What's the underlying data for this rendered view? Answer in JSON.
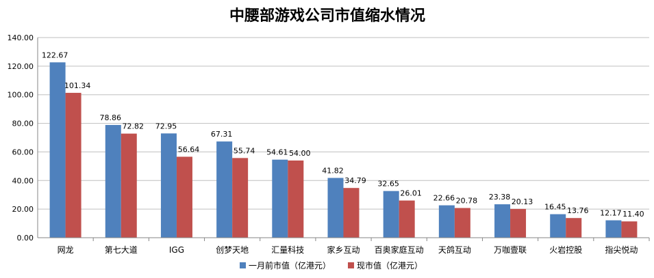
{
  "colors": {
    "series1": "#4f81bd",
    "series2": "#c0504d",
    "grid": "#bfbfbf",
    "axis": "#868686"
  },
  "chart_data": {
    "type": "bar",
    "title": "中腰部游戏公司市值缩水情况",
    "xlabel": "",
    "ylabel": "",
    "ylim": [
      0,
      140
    ],
    "yticks": [
      "0.00",
      "20.00",
      "40.00",
      "60.00",
      "80.00",
      "100.00",
      "120.00",
      "140.00"
    ],
    "grid": true,
    "legend_position": "bottom",
    "categories": [
      "网龙",
      "第七大道",
      "IGG",
      "创梦天地",
      "汇量科技",
      "家乡互动",
      "百奥家庭互动",
      "天鸽互动",
      "万咖壹联",
      "火岩控股",
      "指尖悦动"
    ],
    "series": [
      {
        "name": "一月前市值（亿港元）",
        "values": [
          122.67,
          78.86,
          72.95,
          67.31,
          54.61,
          41.82,
          32.65,
          22.66,
          23.38,
          16.45,
          12.17
        ],
        "labels": [
          "122.67",
          "78.86",
          "72.95",
          "67.31",
          "54.61",
          "41.82",
          "32.65",
          "22.66",
          "23.38",
          "16.45",
          "12.17"
        ]
      },
      {
        "name": "现市值（亿港元）",
        "values": [
          101.34,
          72.82,
          56.64,
          55.74,
          54.0,
          34.79,
          26.01,
          20.78,
          20.13,
          13.76,
          11.4
        ],
        "labels": [
          "101.34",
          "72.82",
          "56.64",
          "55.74",
          "54.00",
          "34.79",
          "26.01",
          "20.78",
          "20.13",
          "13.76",
          "11.40"
        ]
      }
    ]
  }
}
